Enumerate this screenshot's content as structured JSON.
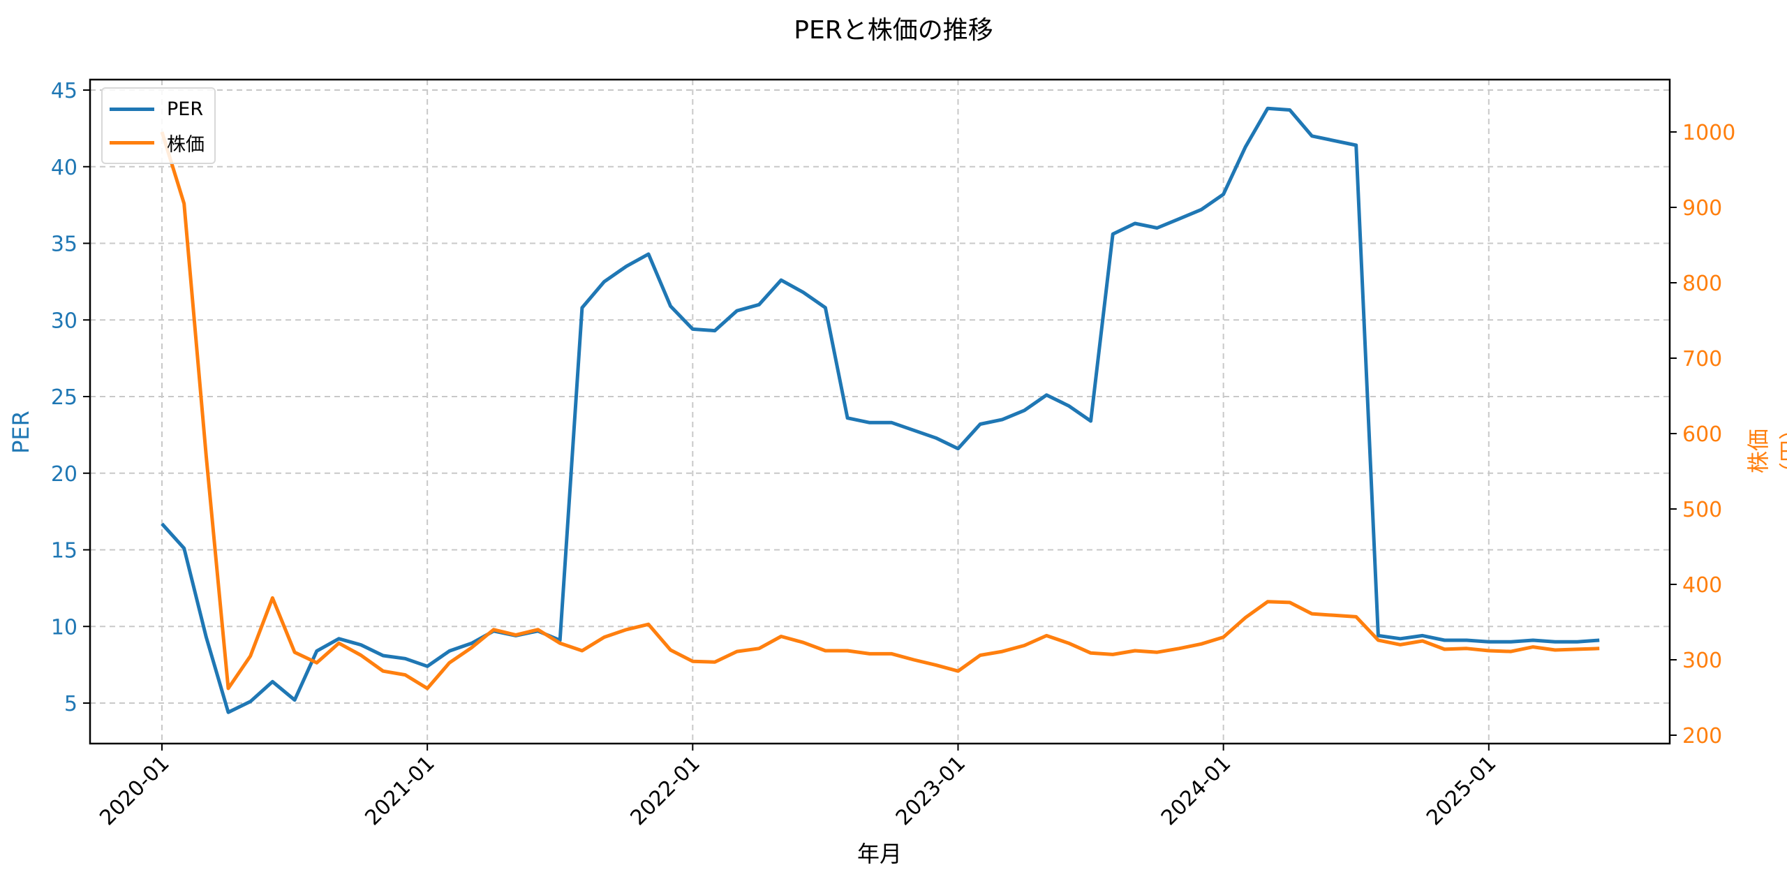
{
  "chart_data": {
    "type": "line",
    "title": "PERと株価の推移",
    "xlabel": "年月",
    "ylabel": "PER",
    "ylabel_right": "株価（円）",
    "x_tick_labels": [
      "2020-01",
      "2021-01",
      "2022-01",
      "2023-01",
      "2024-01",
      "2025-01"
    ],
    "y_ticks_left": [
      5,
      10,
      15,
      20,
      25,
      30,
      35,
      40,
      45
    ],
    "y_ticks_right": [
      200,
      300,
      400,
      500,
      600,
      700,
      800,
      900,
      1000
    ],
    "ylim_left": [
      2.5,
      45.5
    ],
    "ylim_right": [
      190,
      1040
    ],
    "grid": true,
    "legend_position": "upper left",
    "x": [
      "2020-01",
      "2020-02",
      "2020-03",
      "2020-04",
      "2020-05",
      "2020-06",
      "2020-07",
      "2020-08",
      "2020-09",
      "2020-10",
      "2020-11",
      "2020-12",
      "2021-01",
      "2021-02",
      "2021-03",
      "2021-04",
      "2021-05",
      "2021-06",
      "2021-07",
      "2021-08",
      "2021-09",
      "2021-10",
      "2021-11",
      "2021-12",
      "2022-01",
      "2022-02",
      "2022-03",
      "2022-04",
      "2022-05",
      "2022-06",
      "2022-07",
      "2022-08",
      "2022-09",
      "2022-10",
      "2022-11",
      "2022-12",
      "2023-01",
      "2023-02",
      "2023-03",
      "2023-04",
      "2023-05",
      "2023-06",
      "2023-07",
      "2023-08",
      "2023-09",
      "2023-10",
      "2023-11",
      "2023-12",
      "2024-01",
      "2024-02",
      "2024-03",
      "2024-04",
      "2024-05",
      "2024-06",
      "2024-07",
      "2024-08",
      "2024-09",
      "2024-10",
      "2024-11",
      "2024-12",
      "2025-01",
      "2025-02",
      "2025-03",
      "2025-04",
      "2025-05",
      "2025-06"
    ],
    "series": [
      {
        "name": "PER",
        "axis": "left",
        "color": "#1f77b4",
        "values": [
          16.7,
          15.1,
          9.3,
          4.4,
          5.1,
          6.4,
          5.2,
          8.4,
          9.2,
          8.8,
          8.1,
          7.9,
          7.4,
          8.4,
          8.9,
          9.7,
          9.4,
          9.7,
          9.1,
          30.8,
          32.5,
          33.5,
          34.3,
          30.9,
          29.4,
          29.3,
          30.6,
          31.0,
          32.6,
          31.8,
          30.8,
          23.6,
          23.3,
          23.3,
          22.8,
          22.3,
          21.6,
          23.2,
          23.5,
          24.1,
          25.1,
          24.4,
          23.4,
          35.6,
          36.3,
          36.0,
          36.6,
          37.2,
          38.2,
          41.3,
          43.8,
          43.7,
          42.0,
          41.7,
          41.4,
          9.4,
          9.2,
          9.4,
          9.1,
          9.1,
          9.0,
          9.0,
          9.1,
          9.0,
          9.0,
          9.1
        ]
      },
      {
        "name": "株価",
        "axis": "right",
        "color": "#ff7f0e",
        "values": [
          1000,
          905,
          570,
          262,
          305,
          382,
          310,
          296,
          322,
          306,
          285,
          280,
          262,
          296,
          316,
          340,
          333,
          340,
          322,
          312,
          330,
          340,
          347,
          313,
          298,
          297,
          311,
          315,
          331,
          323,
          312,
          312,
          308,
          308,
          300,
          293,
          285,
          306,
          311,
          319,
          332,
          322,
          309,
          307,
          312,
          310,
          315,
          321,
          330,
          356,
          377,
          376,
          361,
          359,
          357,
          326,
          320,
          325,
          314,
          315,
          312,
          311,
          317,
          313,
          314,
          315
        ]
      }
    ]
  }
}
